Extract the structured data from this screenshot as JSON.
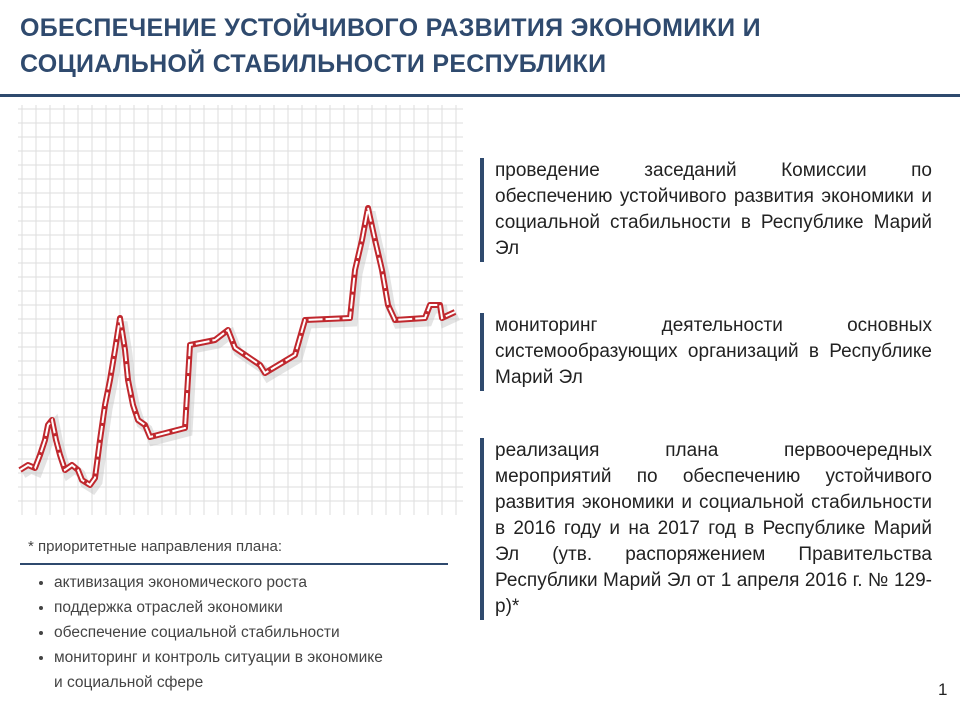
{
  "header": {
    "title": [
      "ОБЕСПЕЧЕНИЕ УСТОЙЧИВОГО РАЗВИТИЯ  ЭКОНОМИКИ И",
      "СОЦИАЛЬНОЙ СТАБИЛЬНОСТИ РЕСПУБЛИКИ"
    ]
  },
  "items": [
    "проведение заседаний Комиссии по обеспечению устойчивого развития экономики и социальной стабильности в Республике Марий Эл",
    "мониторинг деятельности основных системообразующих организаций в Республике Марий Эл",
    "реализация плана первоочередных мероприятий по обеспечению устойчивого развития экономики и социальной стабильности  в 2016 году и на 2017 год в Республике Марий Эл (утв. распоряжением Правительства Республики Марий Эл от 1 апреля 2016 г. № 129-р)*"
  ],
  "note": {
    "heading": "* приоритетные  направления  плана:",
    "bullets": [
      "активизация экономического роста",
      "поддержка отраслей экономики",
      "обеспечение социальной стабильности",
      "мониторинг  и контроль ситуации в экономике  и социальной  сфере"
    ]
  },
  "page_number": "1"
}
